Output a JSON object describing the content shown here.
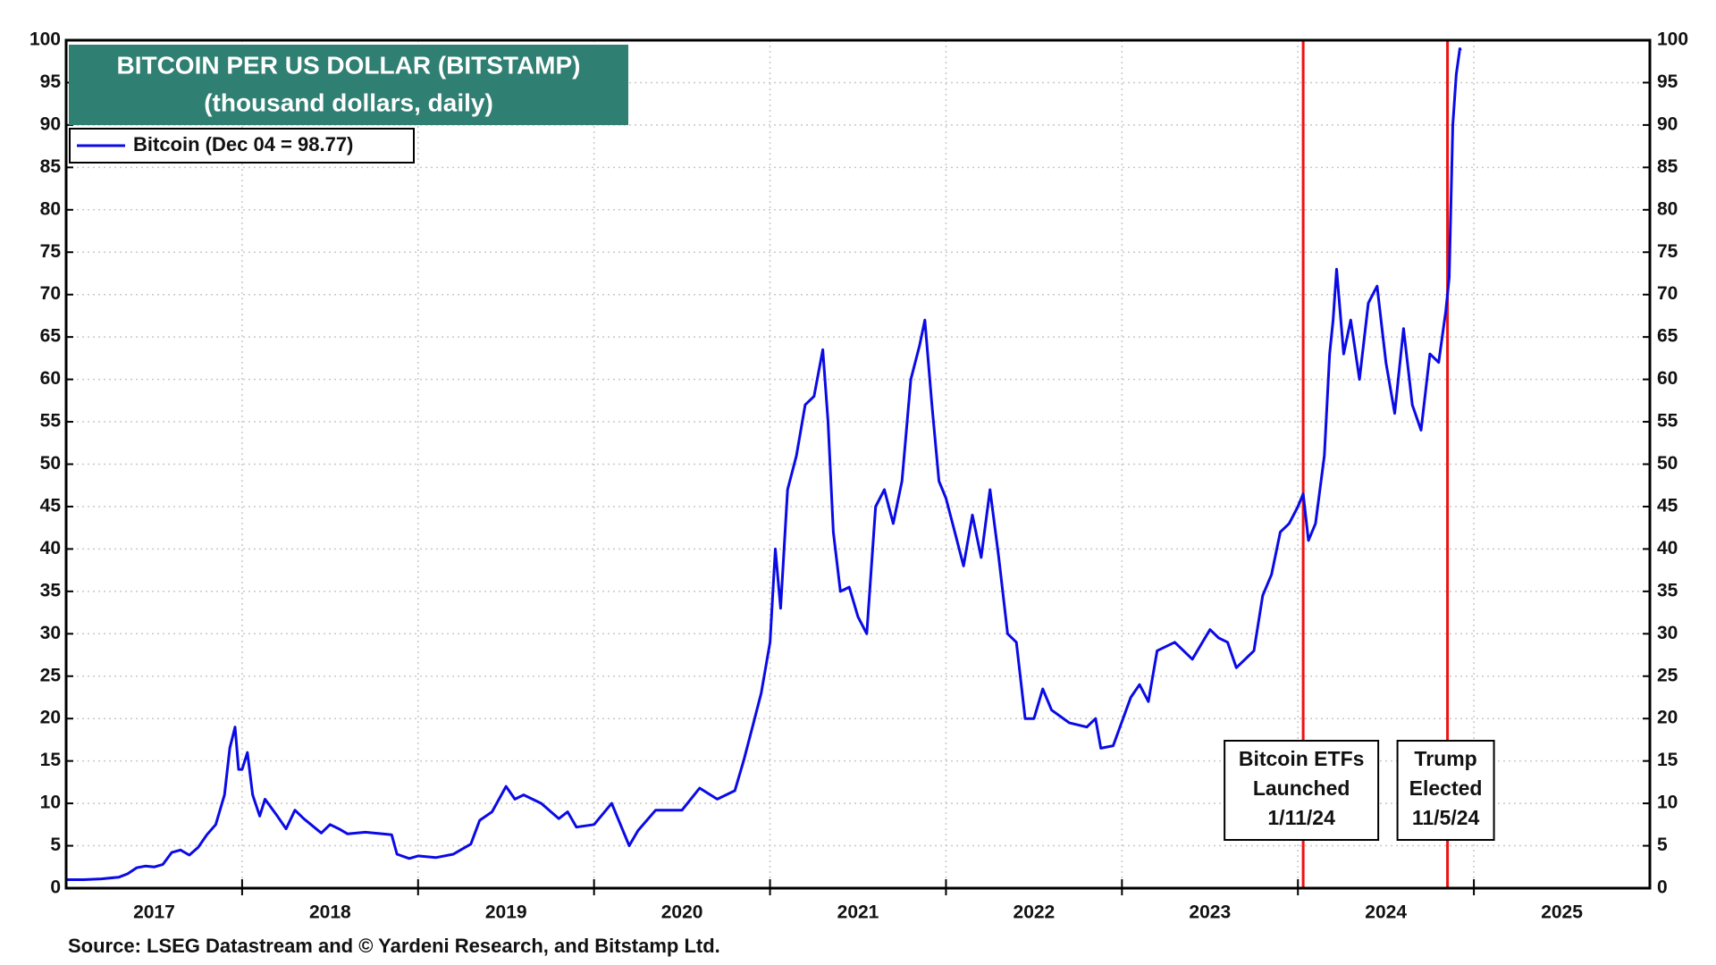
{
  "chart_data": {
    "type": "line",
    "title": "BITCOIN PER US DOLLAR (BITSTAMP)",
    "subtitle": "(thousand dollars, daily)",
    "source": "Source: LSEG Datastream and © Yardeni Research, and Bitstamp Ltd.",
    "xlim": [
      2017,
      2026
    ],
    "ylim": [
      0,
      100
    ],
    "yticks": [
      0,
      5,
      10,
      15,
      20,
      25,
      30,
      35,
      40,
      45,
      50,
      55,
      60,
      65,
      70,
      75,
      80,
      85,
      90,
      95,
      100
    ],
    "xticks": [
      {
        "value": 2017.5,
        "label": "2017"
      },
      {
        "value": 2018.5,
        "label": "2018"
      },
      {
        "value": 2019.5,
        "label": "2019"
      },
      {
        "value": 2020.5,
        "label": "2020"
      },
      {
        "value": 2021.5,
        "label": "2021"
      },
      {
        "value": 2022.5,
        "label": "2022"
      },
      {
        "value": 2023.5,
        "label": "2023"
      },
      {
        "value": 2024.5,
        "label": "2024"
      },
      {
        "value": 2025.5,
        "label": "2025"
      }
    ],
    "xgrid": [
      2018,
      2019,
      2020,
      2021,
      2022,
      2023,
      2024,
      2025
    ],
    "grid": true,
    "legend": "upper left",
    "series": [
      {
        "name": "Bitcoin (Dec 04 = 98.77)",
        "color": "#0a0ae6",
        "x": [
          2017.0,
          2017.1,
          2017.2,
          2017.3,
          2017.35,
          2017.4,
          2017.45,
          2017.5,
          2017.55,
          2017.6,
          2017.65,
          2017.7,
          2017.75,
          2017.8,
          2017.85,
          2017.9,
          2017.93,
          2017.96,
          2017.98,
          2018.0,
          2018.03,
          2018.06,
          2018.1,
          2018.13,
          2018.2,
          2018.25,
          2018.3,
          2018.35,
          2018.45,
          2018.5,
          2018.55,
          2018.6,
          2018.7,
          2018.8,
          2018.85,
          2018.88,
          2018.95,
          2019.0,
          2019.1,
          2019.2,
          2019.3,
          2019.35,
          2019.42,
          2019.5,
          2019.55,
          2019.6,
          2019.7,
          2019.8,
          2019.85,
          2019.9,
          2020.0,
          2020.1,
          2020.2,
          2020.25,
          2020.35,
          2020.5,
          2020.6,
          2020.7,
          2020.8,
          2020.85,
          2020.9,
          2020.95,
          2021.0,
          2021.03,
          2021.06,
          2021.1,
          2021.15,
          2021.2,
          2021.25,
          2021.3,
          2021.33,
          2021.36,
          2021.4,
          2021.45,
          2021.5,
          2021.55,
          2021.6,
          2021.65,
          2021.7,
          2021.75,
          2021.8,
          2021.85,
          2021.88,
          2021.92,
          2021.96,
          2022.0,
          2022.05,
          2022.1,
          2022.15,
          2022.2,
          2022.25,
          2022.3,
          2022.35,
          2022.4,
          2022.45,
          2022.5,
          2022.55,
          2022.6,
          2022.7,
          2022.8,
          2022.85,
          2022.88,
          2022.95,
          2023.05,
          2023.1,
          2023.15,
          2023.2,
          2023.3,
          2023.4,
          2023.5,
          2023.55,
          2023.6,
          2023.65,
          2023.7,
          2023.75,
          2023.8,
          2023.85,
          2023.9,
          2023.95,
          2024.0,
          2024.03,
          2024.06,
          2024.1,
          2024.15,
          2024.18,
          2024.2,
          2024.22,
          2024.26,
          2024.3,
          2024.35,
          2024.4,
          2024.45,
          2024.5,
          2024.55,
          2024.6,
          2024.65,
          2024.7,
          2024.75,
          2024.8,
          2024.84,
          2024.86,
          2024.88,
          2024.9,
          2024.92,
          2024.925
        ],
        "values": [
          1.0,
          1.0,
          1.1,
          1.3,
          1.7,
          2.4,
          2.6,
          2.5,
          2.8,
          4.2,
          4.5,
          3.9,
          4.8,
          6.3,
          7.5,
          11,
          16.5,
          19,
          14,
          14,
          16,
          11,
          8.5,
          10.5,
          8.5,
          7,
          9.2,
          8.2,
          6.5,
          7.5,
          7.0,
          6.4,
          6.6,
          6.4,
          6.3,
          4,
          3.5,
          3.8,
          3.6,
          4,
          5.2,
          8,
          9,
          12,
          10.5,
          11,
          10,
          8.2,
          9.0,
          7.2,
          7.5,
          10,
          5,
          6.8,
          9.2,
          9.2,
          11.8,
          10.5,
          11.5,
          15,
          19,
          23,
          29,
          40,
          33,
          47,
          51,
          57,
          58,
          63.5,
          55,
          42,
          35,
          35.5,
          32,
          30,
          45,
          47,
          43,
          48,
          60,
          64,
          67,
          57,
          48,
          46,
          42,
          38,
          44,
          39,
          47,
          39,
          30,
          29,
          20,
          20,
          23.5,
          21,
          19.5,
          19,
          20,
          16.5,
          16.8,
          22.5,
          24,
          22,
          28,
          29,
          27,
          30.5,
          29.5,
          29,
          26,
          27,
          28,
          34.5,
          37,
          42,
          43,
          45,
          46.5,
          41,
          43,
          51,
          63,
          67,
          73,
          63,
          67,
          60,
          69,
          71,
          62,
          56,
          66,
          57,
          54,
          63,
          62,
          68,
          72,
          90,
          96,
          99,
          98.77
        ]
      }
    ],
    "annotations": [
      {
        "x": 2024.03,
        "color": "#ee1111",
        "lines": [
          "Bitcoin ETFs",
          "Launched",
          "1/11/24"
        ]
      },
      {
        "x": 2024.85,
        "color": "#ee1111",
        "lines": [
          "Trump",
          "Elected",
          "11/5/24"
        ]
      }
    ]
  }
}
